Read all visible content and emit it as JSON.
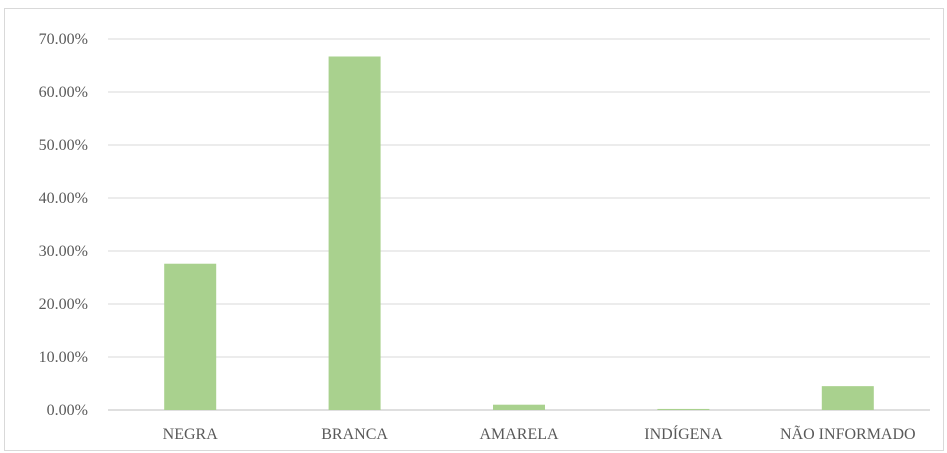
{
  "chart_data": {
    "type": "bar",
    "categories": [
      "NEGRA",
      "BRANCA",
      "AMARELA",
      "INDÍGENA",
      "NÃO INFORMADO"
    ],
    "values": [
      27.6,
      66.7,
      1.0,
      0.2,
      4.5
    ],
    "yticks": [
      "0.00%",
      "10.00%",
      "20.00%",
      "30.00%",
      "40.00%",
      "50.00%",
      "60.00%",
      "70.00%"
    ],
    "ylim": [
      0,
      70
    ],
    "grid": true,
    "bar_color": "#a9d18e",
    "grid_color": "#d9d9d9",
    "axis_color": "#bfbfbf"
  }
}
